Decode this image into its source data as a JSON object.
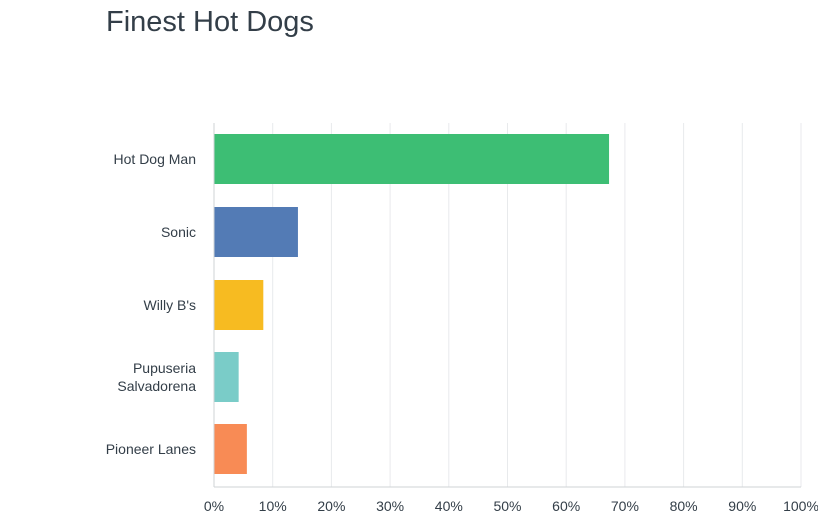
{
  "chart_data": {
    "type": "bar",
    "orientation": "horizontal",
    "title": "Finest Hot Dogs",
    "categories": [
      [
        "Hot Dog Man"
      ],
      [
        "Sonic"
      ],
      [
        "Willy B's"
      ],
      [
        "Pupuseria",
        "Salvadorena"
      ],
      [
        "Pioneer Lanes"
      ]
    ],
    "values": [
      67.3,
      14.3,
      8.4,
      4.2,
      5.6
    ],
    "colors": [
      "#3dbe74",
      "#537bb5",
      "#f7bb21",
      "#7accc8",
      "#f88b55"
    ],
    "xlim": [
      0,
      100
    ],
    "xticks": [
      "0%",
      "10%",
      "20%",
      "30%",
      "40%",
      "50%",
      "60%",
      "70%",
      "80%",
      "90%",
      "100%"
    ],
    "grid": true
  }
}
